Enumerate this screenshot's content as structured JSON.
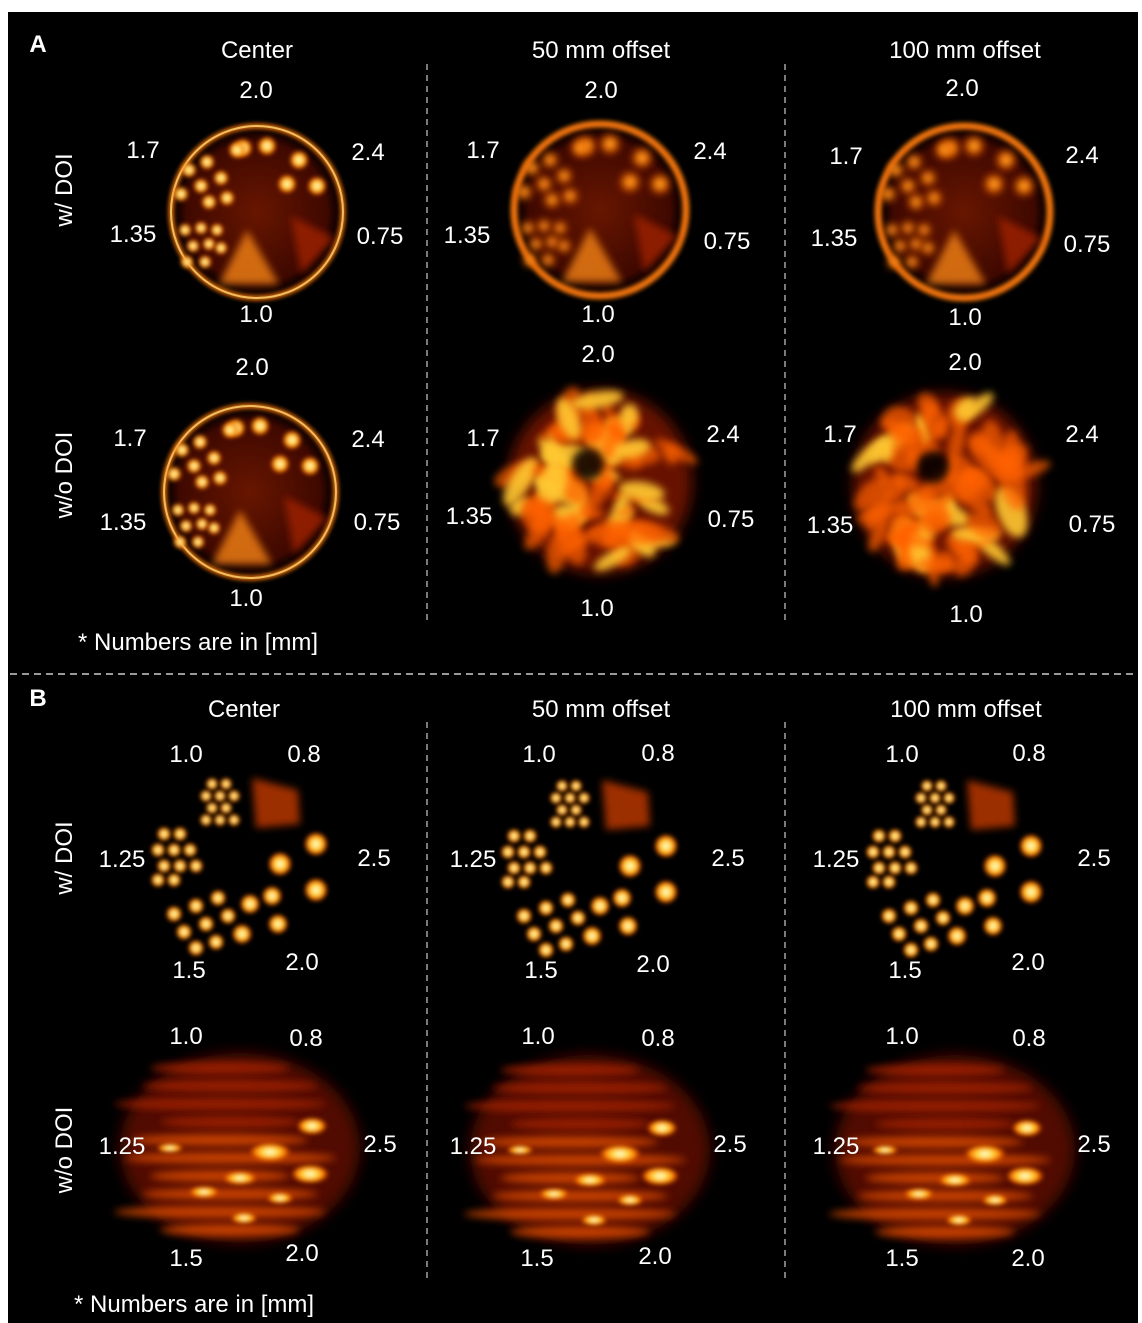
{
  "figure": {
    "panel_a": {
      "letter": "A",
      "columns": [
        "Center",
        "50 mm offset",
        "100 mm offset"
      ],
      "rows": [
        "w/ DOI",
        "w/o DOI"
      ],
      "rod_labels": [
        "2.0",
        "2.4",
        "0.75",
        "1.0",
        "1.35",
        "1.7"
      ],
      "note": "* Numbers are in [mm]"
    },
    "panel_b": {
      "letter": "B",
      "columns": [
        "Center",
        "50 mm offset",
        "100 mm offset"
      ],
      "rows": [
        "w/ DOI",
        "w/o DOI"
      ],
      "rod_labels": [
        "1.0",
        "0.8",
        "1.25",
        "2.5",
        "1.5",
        "2.0"
      ],
      "note": "* Numbers are in [mm]"
    },
    "colors": {
      "background": "#000000",
      "frame": "#000000",
      "hot_colormap": [
        "#3a0000",
        "#a81e00",
        "#ff6a00",
        "#ffd200",
        "#ffffff"
      ]
    }
  }
}
